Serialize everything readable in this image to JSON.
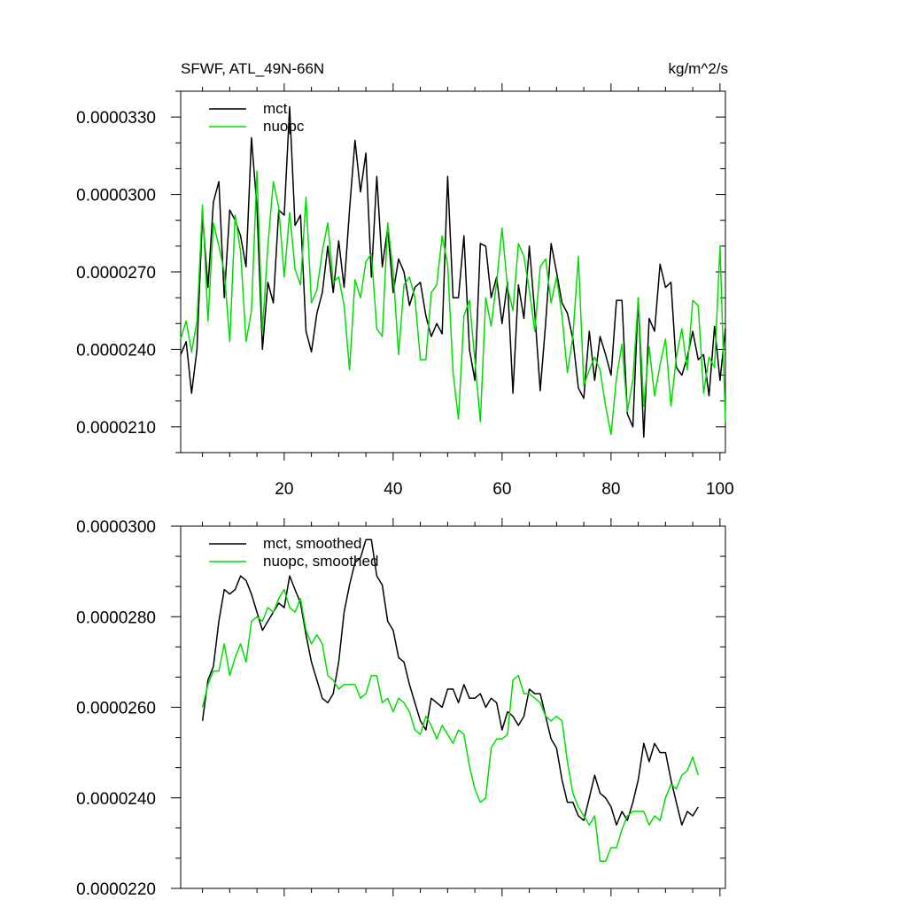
{
  "chart_data": [
    {
      "type": "line",
      "title": "SFWF, ATL_49N-66N",
      "units": "kg/m^2/s",
      "xlim": [
        1,
        101
      ],
      "ylim": [
        2e-05,
        3.4e-05
      ],
      "xticks": [
        20,
        40,
        60,
        80,
        100
      ],
      "xtick_labels": [
        "20",
        "40",
        "60",
        "80",
        "100"
      ],
      "yticks": [
        2.1e-05,
        2.4e-05,
        2.7e-05,
        3e-05,
        3.3e-05
      ],
      "ytick_labels": [
        "0.0000210",
        "0.0000240",
        "0.0000270",
        "0.0000300",
        "0.0000330"
      ],
      "legend_position": "top-left",
      "x_start": 1,
      "series": [
        {
          "name": "mct",
          "color": "#000000",
          "values": [
            2.38e-05,
            2.43e-05,
            2.23e-05,
            2.4e-05,
            2.92e-05,
            2.64e-05,
            2.97e-05,
            3.05e-05,
            2.6e-05,
            2.94e-05,
            2.9e-05,
            2.84e-05,
            2.72e-05,
            3.22e-05,
            2.95e-05,
            2.4e-05,
            2.66e-05,
            2.58e-05,
            2.94e-05,
            2.92e-05,
            3.34e-05,
            2.88e-05,
            2.92e-05,
            2.47e-05,
            2.39e-05,
            2.54e-05,
            2.62e-05,
            2.8e-05,
            2.62e-05,
            2.82e-05,
            2.64e-05,
            2.94e-05,
            3.21e-05,
            3.01e-05,
            3.16e-05,
            2.68e-05,
            3.07e-05,
            2.72e-05,
            2.87e-05,
            2.62e-05,
            2.75e-05,
            2.7e-05,
            2.57e-05,
            2.64e-05,
            2.66e-05,
            2.53e-05,
            2.45e-05,
            2.5e-05,
            2.46e-05,
            3.07e-05,
            2.6e-05,
            2.6e-05,
            2.84e-05,
            2.4e-05,
            2.28e-05,
            2.81e-05,
            2.8e-05,
            2.6e-05,
            2.68e-05,
            2.5e-05,
            2.66e-05,
            2.23e-05,
            2.65e-05,
            2.52e-05,
            2.8e-05,
            2.54e-05,
            2.24e-05,
            2.5e-05,
            2.81e-05,
            2.7e-05,
            2.58e-05,
            2.54e-05,
            2.44e-05,
            2.25e-05,
            2.21e-05,
            2.47e-05,
            2.28e-05,
            2.45e-05,
            2.38e-05,
            2.3e-05,
            2.59e-05,
            2.59e-05,
            2.15e-05,
            2.1e-05,
            2.6e-05,
            2.06e-05,
            2.52e-05,
            2.47e-05,
            2.73e-05,
            2.64e-05,
            2.66e-05,
            2.33e-05,
            2.3e-05,
            2.37e-05,
            2.47e-05,
            2.36e-05,
            2.38e-05,
            2.22e-05,
            2.49e-05,
            2.28e-05,
            2.48e-05
          ]
        },
        {
          "name": "nuopc",
          "color": "#00dd00",
          "values": [
            2.44e-05,
            2.51e-05,
            2.39e-05,
            2.51e-05,
            2.96e-05,
            2.51e-05,
            2.89e-05,
            2.8e-05,
            2.7e-05,
            2.43e-05,
            2.92e-05,
            2.78e-05,
            2.43e-05,
            2.55e-05,
            3.09e-05,
            2.47e-05,
            2.8e-05,
            3.05e-05,
            2.95e-05,
            2.68e-05,
            2.93e-05,
            2.71e-05,
            2.65e-05,
            2.99e-05,
            2.58e-05,
            2.63e-05,
            2.78e-05,
            2.89e-05,
            2.66e-05,
            2.68e-05,
            2.57e-05,
            2.32e-05,
            2.67e-05,
            2.6e-05,
            2.74e-05,
            2.77e-05,
            2.48e-05,
            2.45e-05,
            2.89e-05,
            2.7e-05,
            2.38e-05,
            2.65e-05,
            2.68e-05,
            2.6e-05,
            2.36e-05,
            2.36e-05,
            2.62e-05,
            2.65e-05,
            2.84e-05,
            2.73e-05,
            2.31e-05,
            2.13e-05,
            2.53e-05,
            2.59e-05,
            2.36e-05,
            2.12e-05,
            2.6e-05,
            2.49e-05,
            2.66e-05,
            2.87e-05,
            2.64e-05,
            2.55e-05,
            2.81e-05,
            2.76e-05,
            2.63e-05,
            2.47e-05,
            2.72e-05,
            2.75e-05,
            2.58e-05,
            2.68e-05,
            2.53e-05,
            2.31e-05,
            2.45e-05,
            2.76e-05,
            2.26e-05,
            2.32e-05,
            2.37e-05,
            2.32e-05,
            2.18e-05,
            2.07e-05,
            2.29e-05,
            2.42e-05,
            2.16e-05,
            2.28e-05,
            2.6e-05,
            2.18e-05,
            2.41e-05,
            2.22e-05,
            2.34e-05,
            2.44e-05,
            2.18e-05,
            2.37e-05,
            2.48e-05,
            2.32e-05,
            2.59e-05,
            2.57e-05,
            2.23e-05,
            2.37e-05,
            2.33e-05,
            2.8e-05,
            2.12e-05
          ]
        }
      ]
    },
    {
      "type": "line",
      "xlim": [
        1,
        101
      ],
      "ylim": [
        2.2e-05,
        3e-05
      ],
      "xticks": [
        20,
        40,
        60,
        80,
        100
      ],
      "yticks": [
        2.2e-05,
        2.4e-05,
        2.6e-05,
        2.8e-05,
        3e-05
      ],
      "ytick_labels": [
        "0.0000220",
        "0.0000240",
        "0.0000260",
        "0.0000280",
        "0.0000300"
      ],
      "legend_position": "top-left",
      "x_start": 5,
      "series": [
        {
          "name": "mct, smoothed",
          "color": "#000000",
          "values": [
            2.57e-05,
            2.66e-05,
            2.69e-05,
            2.79e-05,
            2.86e-05,
            2.85e-05,
            2.86e-05,
            2.89e-05,
            2.88e-05,
            2.85e-05,
            2.81e-05,
            2.77e-05,
            2.79e-05,
            2.81e-05,
            2.83e-05,
            2.82e-05,
            2.89e-05,
            2.86e-05,
            2.83e-05,
            2.76e-05,
            2.7e-05,
            2.66e-05,
            2.62e-05,
            2.61e-05,
            2.63e-05,
            2.7e-05,
            2.81e-05,
            2.87e-05,
            2.92e-05,
            2.93e-05,
            2.97e-05,
            2.97e-05,
            2.89e-05,
            2.87e-05,
            2.79e-05,
            2.77e-05,
            2.71e-05,
            2.7e-05,
            2.65e-05,
            2.61e-05,
            2.57e-05,
            2.55e-05,
            2.62e-05,
            2.61e-05,
            2.6e-05,
            2.64e-05,
            2.64e-05,
            2.61e-05,
            2.65e-05,
            2.62e-05,
            2.62e-05,
            2.63e-05,
            2.6e-05,
            2.62e-05,
            2.61e-05,
            2.55e-05,
            2.59e-05,
            2.58e-05,
            2.56e-05,
            2.58e-05,
            2.64e-05,
            2.63e-05,
            2.63e-05,
            2.58e-05,
            2.53e-05,
            2.51e-05,
            2.44e-05,
            2.39e-05,
            2.39e-05,
            2.36e-05,
            2.35e-05,
            2.4e-05,
            2.45e-05,
            2.41e-05,
            2.4e-05,
            2.38e-05,
            2.34e-05,
            2.37e-05,
            2.35e-05,
            2.39e-05,
            2.44e-05,
            2.52e-05,
            2.48e-05,
            2.52e-05,
            2.5e-05,
            2.5e-05,
            2.44e-05,
            2.39e-05,
            2.34e-05,
            2.37e-05,
            2.36e-05,
            2.38e-05
          ]
        },
        {
          "name": "nuopc, smoothed",
          "color": "#00dd00",
          "values": [
            2.6e-05,
            2.65e-05,
            2.68e-05,
            2.68e-05,
            2.74e-05,
            2.67e-05,
            2.71e-05,
            2.74e-05,
            2.7e-05,
            2.79e-05,
            2.8e-05,
            2.79e-05,
            2.82e-05,
            2.81e-05,
            2.84e-05,
            2.86e-05,
            2.82e-05,
            2.81e-05,
            2.84e-05,
            2.77e-05,
            2.74e-05,
            2.76e-05,
            2.74e-05,
            2.67e-05,
            2.66e-05,
            2.64e-05,
            2.65e-05,
            2.65e-05,
            2.65e-05,
            2.62e-05,
            2.63e-05,
            2.67e-05,
            2.67e-05,
            2.61e-05,
            2.62e-05,
            2.59e-05,
            2.62e-05,
            2.61e-05,
            2.59e-05,
            2.55e-05,
            2.54e-05,
            2.58e-05,
            2.56e-05,
            2.53e-05,
            2.56e-05,
            2.54e-05,
            2.52e-05,
            2.55e-05,
            2.54e-05,
            2.47e-05,
            2.42e-05,
            2.39e-05,
            2.4e-05,
            2.51e-05,
            2.53e-05,
            2.53e-05,
            2.54e-05,
            2.66e-05,
            2.67e-05,
            2.63e-05,
            2.63e-05,
            2.62e-05,
            2.61e-05,
            2.58e-05,
            2.57e-05,
            2.58e-05,
            2.57e-05,
            2.48e-05,
            2.41e-05,
            2.38e-05,
            2.36e-05,
            2.34e-05,
            2.36e-05,
            2.26e-05,
            2.26e-05,
            2.29e-05,
            2.29e-05,
            2.33e-05,
            2.36e-05,
            2.37e-05,
            2.37e-05,
            2.37e-05,
            2.34e-05,
            2.36e-05,
            2.35e-05,
            2.4e-05,
            2.43e-05,
            2.42e-05,
            2.45e-05,
            2.46e-05,
            2.49e-05,
            2.45e-05
          ]
        }
      ]
    }
  ]
}
